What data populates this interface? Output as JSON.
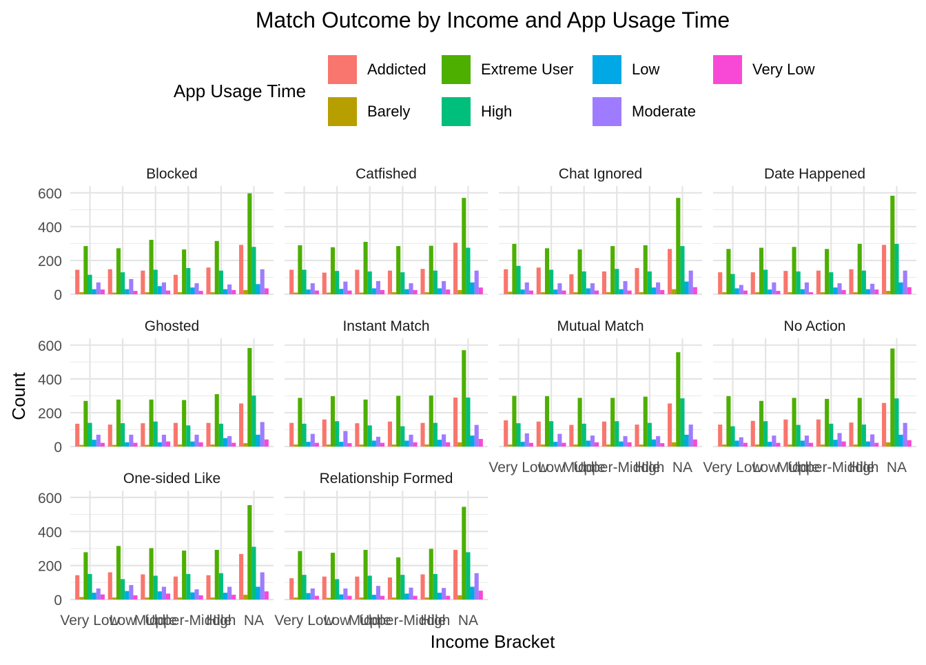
{
  "chart_data": {
    "type": "bar",
    "title": "Match Outcome by Income and App Usage Time",
    "xlabel": "Income Bracket",
    "ylabel": "Count",
    "ylim": [
      0,
      640
    ],
    "yticks": [
      0,
      200,
      400,
      600
    ],
    "legend": {
      "title": "App Usage Time",
      "placement": "top"
    },
    "categories": [
      "Very Low",
      "Low",
      "Middle",
      "Upper-Middle",
      "High",
      "NA"
    ],
    "series": [
      {
        "name": "Addicted",
        "color": "#F8766D"
      },
      {
        "name": "Barely",
        "color": "#B79F00"
      },
      {
        "name": "Extreme User",
        "color": "#4DAF00"
      },
      {
        "name": "High",
        "color": "#00BF7D"
      },
      {
        "name": "Low",
        "color": "#00A9E6"
      },
      {
        "name": "Moderate",
        "color": "#9F7CFF"
      },
      {
        "name": "Very Low",
        "color": "#F849D6"
      }
    ],
    "facets": [
      {
        "title": "Blocked",
        "values": [
          [
            145,
            12,
            285,
            115,
            30,
            70,
            28
          ],
          [
            148,
            10,
            272,
            130,
            30,
            90,
            20
          ],
          [
            140,
            12,
            322,
            145,
            48,
            70,
            22
          ],
          [
            115,
            12,
            265,
            155,
            40,
            65,
            20
          ],
          [
            158,
            12,
            315,
            140,
            30,
            58,
            25
          ],
          [
            292,
            25,
            597,
            280,
            60,
            148,
            35
          ]
        ]
      },
      {
        "title": "Catfished",
        "values": [
          [
            145,
            10,
            290,
            145,
            28,
            65,
            22
          ],
          [
            128,
            10,
            278,
            138,
            32,
            75,
            22
          ],
          [
            145,
            10,
            310,
            135,
            35,
            78,
            25
          ],
          [
            140,
            12,
            285,
            130,
            30,
            65,
            25
          ],
          [
            150,
            12,
            287,
            140,
            35,
            78,
            28
          ],
          [
            305,
            25,
            570,
            275,
            70,
            140,
            40
          ]
        ]
      },
      {
        "title": "Chat Ignored",
        "values": [
          [
            148,
            15,
            298,
            168,
            28,
            70,
            22
          ],
          [
            158,
            12,
            272,
            145,
            28,
            65,
            22
          ],
          [
            118,
            12,
            265,
            135,
            35,
            65,
            22
          ],
          [
            135,
            12,
            285,
            150,
            30,
            78,
            22
          ],
          [
            155,
            12,
            290,
            135,
            40,
            70,
            25
          ],
          [
            268,
            30,
            570,
            285,
            75,
            140,
            42
          ]
        ]
      },
      {
        "title": "Date Happened",
        "values": [
          [
            130,
            12,
            268,
            120,
            35,
            55,
            22
          ],
          [
            130,
            12,
            275,
            145,
            28,
            70,
            20
          ],
          [
            138,
            12,
            280,
            135,
            30,
            70,
            12
          ],
          [
            140,
            12,
            268,
            130,
            40,
            65,
            25
          ],
          [
            148,
            12,
            298,
            140,
            30,
            62,
            28
          ],
          [
            292,
            20,
            583,
            298,
            70,
            140,
            42
          ]
        ]
      },
      {
        "title": "Ghosted",
        "values": [
          [
            135,
            10,
            270,
            140,
            40,
            70,
            22
          ],
          [
            130,
            10,
            278,
            138,
            25,
            70,
            22
          ],
          [
            138,
            10,
            278,
            148,
            25,
            70,
            30
          ],
          [
            140,
            12,
            275,
            125,
            30,
            70,
            25
          ],
          [
            140,
            12,
            310,
            135,
            50,
            62,
            22
          ],
          [
            255,
            20,
            583,
            302,
            70,
            145,
            42
          ]
        ]
      },
      {
        "title": "Instant Match",
        "values": [
          [
            140,
            12,
            288,
            135,
            28,
            75,
            22
          ],
          [
            160,
            12,
            298,
            150,
            28,
            92,
            20
          ],
          [
            138,
            12,
            278,
            125,
            35,
            58,
            22
          ],
          [
            148,
            12,
            300,
            120,
            35,
            70,
            25
          ],
          [
            140,
            12,
            302,
            140,
            40,
            72,
            25
          ],
          [
            290,
            25,
            570,
            290,
            65,
            128,
            45
          ]
        ]
      },
      {
        "title": "Mutual Match",
        "values": [
          [
            155,
            12,
            300,
            138,
            28,
            78,
            22
          ],
          [
            148,
            12,
            298,
            150,
            28,
            75,
            22
          ],
          [
            128,
            12,
            288,
            135,
            35,
            65,
            25
          ],
          [
            148,
            12,
            288,
            150,
            30,
            62,
            25
          ],
          [
            130,
            12,
            295,
            140,
            42,
            62,
            20
          ],
          [
            255,
            25,
            558,
            285,
            70,
            130,
            42
          ]
        ]
      },
      {
        "title": "No Action",
        "values": [
          [
            130,
            12,
            298,
            120,
            35,
            55,
            22
          ],
          [
            152,
            12,
            270,
            150,
            28,
            65,
            22
          ],
          [
            160,
            12,
            288,
            128,
            35,
            65,
            22
          ],
          [
            160,
            12,
            282,
            135,
            40,
            80,
            30
          ],
          [
            142,
            12,
            288,
            130,
            30,
            72,
            22
          ],
          [
            258,
            25,
            580,
            285,
            70,
            140,
            38
          ]
        ]
      },
      {
        "title": "One-sided Like",
        "values": [
          [
            143,
            15,
            278,
            150,
            40,
            65,
            30
          ],
          [
            160,
            12,
            315,
            120,
            50,
            85,
            25
          ],
          [
            148,
            12,
            302,
            140,
            48,
            75,
            35
          ],
          [
            135,
            12,
            288,
            150,
            42,
            60,
            25
          ],
          [
            143,
            12,
            292,
            155,
            40,
            75,
            28
          ],
          [
            268,
            28,
            555,
            310,
            75,
            160,
            48
          ]
        ]
      },
      {
        "title": "Relationship Formed",
        "values": [
          [
            125,
            12,
            285,
            145,
            38,
            65,
            22
          ],
          [
            135,
            10,
            275,
            120,
            30,
            65,
            22
          ],
          [
            135,
            12,
            292,
            140,
            28,
            80,
            22
          ],
          [
            130,
            12,
            248,
            145,
            35,
            70,
            22
          ],
          [
            148,
            12,
            298,
            150,
            40,
            68,
            22
          ],
          [
            292,
            25,
            545,
            278,
            75,
            155,
            52
          ]
        ]
      }
    ]
  }
}
